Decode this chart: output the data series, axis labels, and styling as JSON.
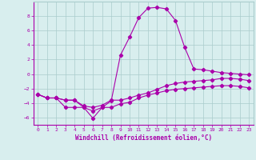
{
  "xlabel": "Windchill (Refroidissement éolien,°C)",
  "x": [
    0,
    1,
    2,
    3,
    4,
    5,
    6,
    7,
    8,
    9,
    10,
    11,
    12,
    13,
    14,
    15,
    16,
    17,
    18,
    19,
    20,
    21,
    22,
    23
  ],
  "line1": [
    -2.8,
    -3.3,
    -3.3,
    -3.6,
    -3.6,
    -4.6,
    -6.1,
    -4.6,
    -4.6,
    -4.1,
    -3.9,
    -3.3,
    -2.9,
    -2.6,
    -2.3,
    -2.1,
    -2.0,
    -1.9,
    -1.8,
    -1.7,
    -1.6,
    -1.6,
    -1.7,
    -1.9
  ],
  "line2": [
    -2.8,
    -3.3,
    -3.3,
    -4.6,
    -4.6,
    -4.6,
    -5.1,
    -4.6,
    -3.7,
    2.6,
    5.1,
    7.8,
    9.1,
    9.2,
    9.0,
    7.4,
    3.7,
    0.7,
    0.6,
    0.4,
    0.2,
    0.1,
    0.0,
    -0.1
  ],
  "line3": [
    -2.8,
    -3.3,
    -3.3,
    -3.6,
    -3.6,
    -4.4,
    -4.6,
    -4.3,
    -3.6,
    -3.6,
    -3.3,
    -2.9,
    -2.6,
    -2.1,
    -1.6,
    -1.3,
    -1.1,
    -1.0,
    -0.9,
    -0.8,
    -0.6,
    -0.6,
    -0.7,
    -0.9
  ],
  "line_color": "#aa00aa",
  "bg_color": "#d8eeee",
  "grid_color": "#aacccc",
  "ylim": [
    -7,
    10
  ],
  "yticks": [
    -6,
    -4,
    -2,
    0,
    2,
    4,
    6,
    8
  ],
  "xticks": [
    0,
    1,
    2,
    3,
    4,
    5,
    6,
    7,
    8,
    9,
    10,
    11,
    12,
    13,
    14,
    15,
    16,
    17,
    18,
    19,
    20,
    21,
    22,
    23
  ]
}
